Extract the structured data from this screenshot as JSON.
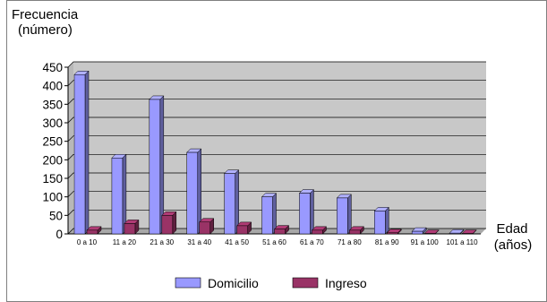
{
  "chart_data": {
    "type": "bar",
    "ylabel_lines": [
      "Frecuencia",
      "(número)"
    ],
    "xlabel_lines": [
      "Edad",
      "(años)"
    ],
    "categories": [
      "0 a 10",
      "11 a 20",
      "21 a 30",
      "31 a 40",
      "41 a 50",
      "51 a 60",
      "61 a 70",
      "71 a 80",
      "81 a 90",
      "91 a 100",
      "101 a 110"
    ],
    "series": [
      {
        "name": "Domicilio",
        "color": "#9999ff",
        "values": [
          430,
          205,
          363,
          220,
          163,
          100,
          110,
          97,
          62,
          7,
          2
        ]
      },
      {
        "name": "Ingreso",
        "color": "#993366",
        "values": [
          10,
          28,
          50,
          32,
          22,
          13,
          10,
          10,
          3,
          1,
          1
        ]
      }
    ],
    "yticks": [
      0,
      50,
      100,
      150,
      200,
      250,
      300,
      350,
      400,
      450
    ],
    "ylim": [
      0,
      450
    ],
    "grid": true,
    "legend_position": "bottom"
  }
}
